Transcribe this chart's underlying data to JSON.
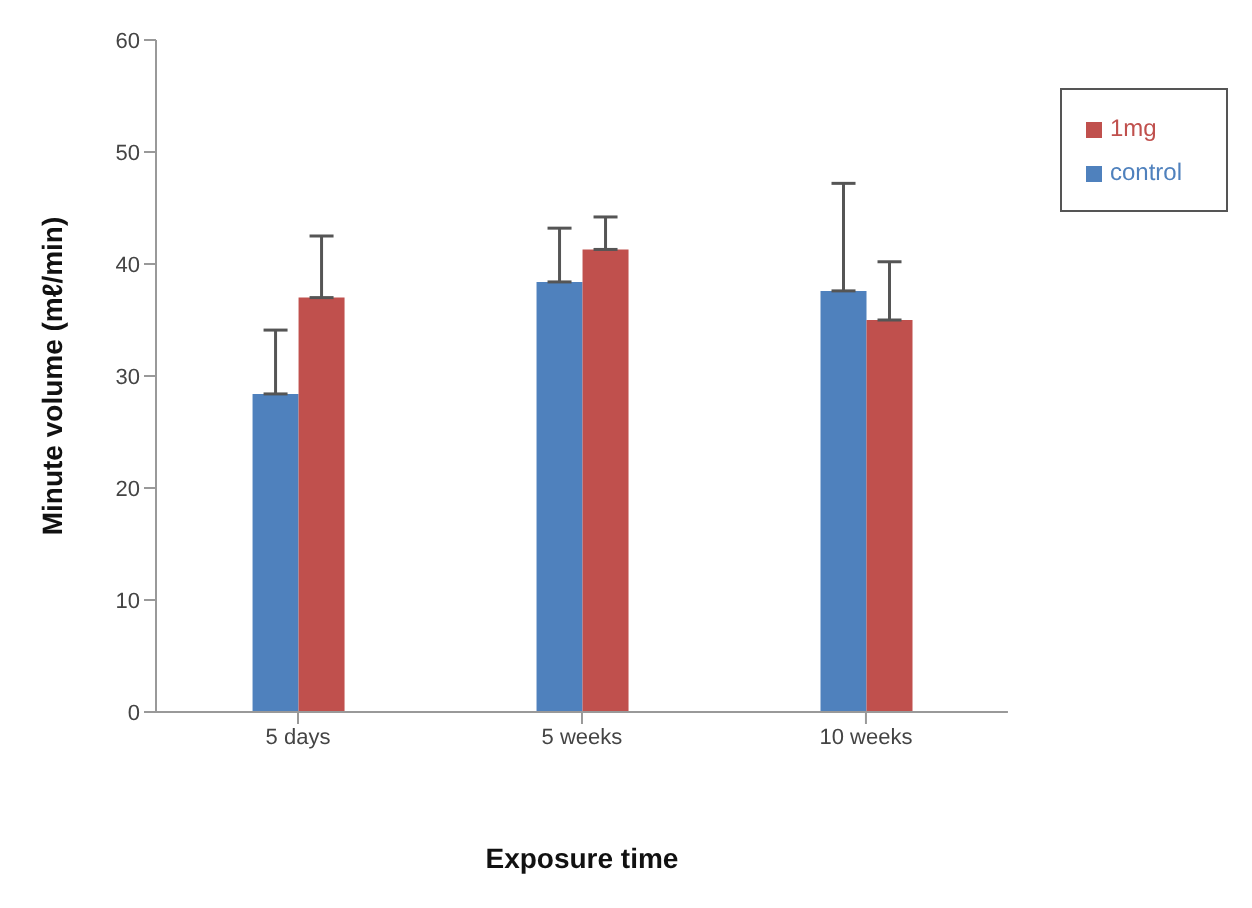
{
  "chart_data": {
    "type": "bar",
    "xlabel": "Exposure time",
    "ylabel": "Minute volume (mℓ/min)",
    "categories": [
      "5 days",
      "5 weeks",
      "10 weeks"
    ],
    "series": [
      {
        "name": "control",
        "color": "#4f81bd",
        "values": [
          28.4,
          38.4,
          37.6
        ],
        "errors": [
          [
            28.4,
            34.1
          ],
          [
            38.4,
            43.2
          ],
          [
            37.6,
            47.2
          ]
        ]
      },
      {
        "name": "1mg",
        "color": "#c0504d",
        "values": [
          37.0,
          41.3,
          35.0
        ],
        "errors": [
          [
            37.0,
            42.5
          ],
          [
            41.3,
            44.2
          ],
          [
            35.0,
            40.2
          ]
        ]
      }
    ],
    "ylim": [
      0,
      60
    ],
    "yticks": [
      0,
      10,
      20,
      30,
      40,
      50,
      60
    ],
    "grid": false,
    "legend": "top right"
  }
}
